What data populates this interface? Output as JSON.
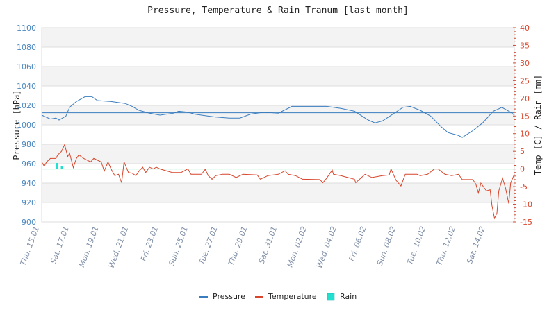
{
  "chart_data": {
    "type": "line",
    "title": "Pressure, Temperature & Rain Tranum [last month]",
    "ylabel_left": "Pressure [hPa]",
    "ylabel_right": "Temp [C] / Rain [mm]",
    "ylim_left": [
      900,
      1100
    ],
    "ylim_right": [
      -15,
      40
    ],
    "yticks_left": [
      900,
      920,
      940,
      960,
      980,
      1000,
      1020,
      1040,
      1060,
      1080,
      1100
    ],
    "yticks_right": [
      -15,
      -10,
      -5,
      0,
      5,
      10,
      15,
      20,
      25,
      30,
      35,
      40
    ],
    "xlim": [
      "01-15 02:00",
      "02-15 21:00"
    ],
    "xtick_labels": [
      "Thu. 15.01",
      "Sat. 17.01",
      "Mon. 19.01",
      "Wed. 21.01",
      "Fri. 23.01",
      "Sun. 25.01",
      "Tue. 27.01",
      "Thu. 29.01",
      "Sat. 31.01",
      "Mon. 02.02",
      "Wed. 04.02",
      "Fri. 06.02",
      "Sun. 08.02",
      "Tue. 10.02",
      "Thu. 12.02",
      "Sat. 14.02"
    ],
    "grid": true,
    "legend_position": "bottom",
    "colors": {
      "pressure": "#3a7dbf",
      "temperature": "#d9452b",
      "rain": "#22e0d0",
      "rain_line": "#50e0a0",
      "band": "#f3f3f3"
    },
    "series": [
      {
        "name": "Pressure",
        "axis": "left",
        "average": 1012.4,
        "points": [
          [
            "01-15 02:00",
            1010
          ],
          [
            "01-15 16:00",
            1006
          ],
          [
            "01-16 01:00",
            1007
          ],
          [
            "01-16 06:00",
            1005
          ],
          [
            "01-16 17:00",
            1009
          ],
          [
            "01-16 23:00",
            1018
          ],
          [
            "01-17 10:00",
            1024
          ],
          [
            "01-18 00:00",
            1029
          ],
          [
            "01-18 11:00",
            1029
          ],
          [
            "01-18 20:00",
            1025
          ],
          [
            "01-19 18:00",
            1024
          ],
          [
            "01-20 17:00",
            1022
          ],
          [
            "01-21 04:00",
            1019
          ],
          [
            "01-21 15:00",
            1015
          ],
          [
            "01-22 08:00",
            1012
          ],
          [
            "01-23 01:00",
            1010
          ],
          [
            "01-23 23:00",
            1012
          ],
          [
            "01-24 07:00",
            1014
          ],
          [
            "01-24 22:00",
            1013
          ],
          [
            "01-25 09:00",
            1011
          ],
          [
            "01-26 07:00",
            1009
          ],
          [
            "01-26 19:00",
            1008
          ],
          [
            "01-27 17:00",
            1007
          ],
          [
            "01-28 10:00",
            1007
          ],
          [
            "01-29 03:00",
            1011
          ],
          [
            "01-30 01:00",
            1013
          ],
          [
            "01-31 00:00",
            1012
          ],
          [
            "01-31 22:00",
            1019
          ],
          [
            "02-01 20:00",
            1019
          ],
          [
            "02-03 06:00",
            1019
          ],
          [
            "02-04 05:00",
            1017
          ],
          [
            "02-05 03:00",
            1014
          ],
          [
            "02-06 01:00",
            1005
          ],
          [
            "02-06 12:00",
            1002
          ],
          [
            "02-07 00:00",
            1004
          ],
          [
            "02-07 17:00",
            1011
          ],
          [
            "02-08 09:00",
            1018
          ],
          [
            "02-08 21:00",
            1019
          ],
          [
            "02-09 13:00",
            1015
          ],
          [
            "02-10 06:00",
            1009
          ],
          [
            "02-10 23:00",
            998
          ],
          [
            "02-11 10:00",
            992
          ],
          [
            "02-12 03:00",
            989
          ],
          [
            "02-12 09:00",
            987
          ],
          [
            "02-13 02:00",
            994
          ],
          [
            "02-13 18:00",
            1002
          ],
          [
            "02-14 11:00",
            1014
          ],
          [
            "02-15 01:00",
            1018
          ],
          [
            "02-15 15:00",
            1013
          ],
          [
            "02-15 21:00",
            1010
          ]
        ]
      },
      {
        "name": "Temperature",
        "axis": "right",
        "points": [
          [
            "01-15 02:00",
            2.0
          ],
          [
            "01-15 06:00",
            0.8
          ],
          [
            "01-15 10:00",
            2.0
          ],
          [
            "01-15 16:00",
            3.0
          ],
          [
            "01-16 01:00",
            3.0
          ],
          [
            "01-16 04:00",
            4.0
          ],
          [
            "01-16 10:00",
            5.0
          ],
          [
            "01-16 15:00",
            6.9
          ],
          [
            "01-16 20:00",
            3.5
          ],
          [
            "01-16 23:00",
            4.5
          ],
          [
            "01-17 05:00",
            0.4
          ],
          [
            "01-17 10:00",
            3.0
          ],
          [
            "01-17 14:00",
            4.0
          ],
          [
            "01-17 22:00",
            3.0
          ],
          [
            "01-18 09:00",
            2.0
          ],
          [
            "01-18 14:00",
            3.0
          ],
          [
            "01-19 02:00",
            2.0
          ],
          [
            "01-19 07:00",
            -0.6
          ],
          [
            "01-19 13:00",
            2.0
          ],
          [
            "01-19 18:00",
            0.0
          ],
          [
            "01-20 00:00",
            -1.9
          ],
          [
            "01-20 06:00",
            -1.5
          ],
          [
            "01-20 11:00",
            -3.9
          ],
          [
            "01-20 15:00",
            2.0
          ],
          [
            "01-20 22:00",
            -1.0
          ],
          [
            "01-21 04:00",
            -1.2
          ],
          [
            "01-21 10:00",
            -1.9
          ],
          [
            "01-21 15:00",
            -0.6
          ],
          [
            "01-21 21:00",
            0.5
          ],
          [
            "01-22 02:00",
            -1.0
          ],
          [
            "01-22 08:00",
            0.5
          ],
          [
            "01-22 14:00",
            0.0
          ],
          [
            "01-22 19:00",
            0.5
          ],
          [
            "01-23 01:00",
            0.0
          ],
          [
            "01-23 21:00",
            -1.0
          ],
          [
            "01-24 11:00",
            -1.0
          ],
          [
            "01-24 22:00",
            0.0
          ],
          [
            "01-25 03:00",
            -1.5
          ],
          [
            "01-25 20:00",
            -1.5
          ],
          [
            "01-26 02:00",
            -0.1
          ],
          [
            "01-26 07:00",
            -1.9
          ],
          [
            "01-26 13:00",
            -2.9
          ],
          [
            "01-26 19:00",
            -1.9
          ],
          [
            "01-27 06:00",
            -1.5
          ],
          [
            "01-27 17:00",
            -1.5
          ],
          [
            "01-28 04:00",
            -2.4
          ],
          [
            "01-28 15:00",
            -1.5
          ],
          [
            "01-29 14:00",
            -1.7
          ],
          [
            "01-29 19:00",
            -2.9
          ],
          [
            "01-30 07:00",
            -1.9
          ],
          [
            "01-31 00:00",
            -1.5
          ],
          [
            "01-31 11:00",
            -0.5
          ],
          [
            "01-31 16:00",
            -1.5
          ],
          [
            "02-01 04:00",
            -1.9
          ],
          [
            "02-01 15:00",
            -2.9
          ],
          [
            "02-02 19:00",
            -3.0
          ],
          [
            "02-03 00:00",
            -3.9
          ],
          [
            "02-03 06:00",
            -2.6
          ],
          [
            "02-03 15:00",
            -0.3
          ],
          [
            "02-03 17:00",
            -1.5
          ],
          [
            "02-04 05:00",
            -1.9
          ],
          [
            "02-04 16:00",
            -2.4
          ],
          [
            "02-05 03:00",
            -2.9
          ],
          [
            "02-05 05:00",
            -3.9
          ],
          [
            "02-05 20:00",
            -1.5
          ],
          [
            "02-06 07:00",
            -2.4
          ],
          [
            "02-07 00:00",
            -1.9
          ],
          [
            "02-07 11:00",
            -1.7
          ],
          [
            "02-07 14:00",
            0.0
          ],
          [
            "02-07 22:00",
            -3.2
          ],
          [
            "02-08 06:00",
            -4.8
          ],
          [
            "02-08 13:00",
            -1.5
          ],
          [
            "02-09 08:00",
            -1.5
          ],
          [
            "02-09 13:00",
            -1.9
          ],
          [
            "02-10 01:00",
            -1.5
          ],
          [
            "02-10 12:00",
            0.0
          ],
          [
            "02-10 18:00",
            0.0
          ],
          [
            "02-11 05:00",
            -1.5
          ],
          [
            "02-11 16:00",
            -1.9
          ],
          [
            "02-12 03:00",
            -1.5
          ],
          [
            "02-12 09:00",
            -3.0
          ],
          [
            "02-13 02:00",
            -3.0
          ],
          [
            "02-13 07:00",
            -4.3
          ],
          [
            "02-13 11:00",
            -6.8
          ],
          [
            "02-13 15:00",
            -4.0
          ],
          [
            "02-13 21:00",
            -5.5
          ],
          [
            "02-14 00:00",
            -6.2
          ],
          [
            "02-14 06:00",
            -5.9
          ],
          [
            "02-14 09:00",
            -10.4
          ],
          [
            "02-14 13:00",
            -14.0
          ],
          [
            "02-14 17:00",
            -12.5
          ],
          [
            "02-14 20:00",
            -6.2
          ],
          [
            "02-15 02:00",
            -2.6
          ],
          [
            "02-15 07:00",
            -5.5
          ],
          [
            "02-15 12:00",
            -9.8
          ],
          [
            "02-15 15:00",
            -4.0
          ],
          [
            "02-15 21:00",
            -1.5
          ]
        ]
      },
      {
        "name": "Rain",
        "axis": "right",
        "type": "bar",
        "line_level": 0,
        "points": [
          [
            "01-16 02:00",
            1.7
          ],
          [
            "01-16 10:00",
            0.8
          ]
        ]
      }
    ]
  }
}
